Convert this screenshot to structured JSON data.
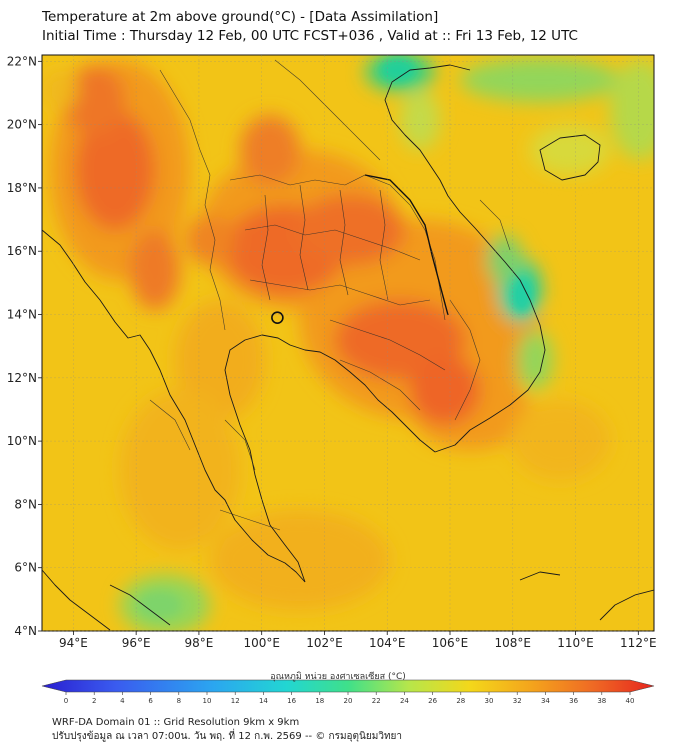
{
  "header": {
    "title_line1": "Temperature at 2m above ground(°C) - [Data Assimilation]",
    "title_line2": "Initial Time : Thursday 12 Feb, 00 UTC FCST+036 , Valid at :: Fri 13 Feb, 12 UTC"
  },
  "map": {
    "lon_range": [
      93,
      112.5
    ],
    "lat_range": [
      4,
      22.2
    ],
    "lon_ticks": [
      "94°E",
      "96°E",
      "98°E",
      "100°E",
      "102°E",
      "104°E",
      "106°E",
      "108°E",
      "110°E",
      "112°E"
    ],
    "lat_ticks": [
      "4°N",
      "6°N",
      "8°N",
      "10°N",
      "12°N",
      "14°N",
      "16°N",
      "18°N",
      "20°N",
      "22°N"
    ],
    "marker": {
      "lon": 100.5,
      "lat": 13.9
    }
  },
  "colorbar": {
    "label": "อุณหภูมิ หน่วย องศาเซลเซียส (°C)",
    "ticks": [
      "0",
      "2",
      "4",
      "6",
      "8",
      "10",
      "12",
      "14",
      "16",
      "18",
      "20",
      "22",
      "24",
      "26",
      "28",
      "30",
      "32",
      "34",
      "36",
      "38",
      "40"
    ]
  },
  "footer": {
    "line1": "WRF-DA Domain 01 :: Grid Resolution 9km x 9km",
    "line2": "ปรับปรุงข้อมูล ณ เวลา 07:00น. วัน พฤ. ที่ 12 ก.พ. 2569 -- © กรมอุตุนิยมวิทยา"
  },
  "colors": {
    "base_yellow": "#f2c417",
    "warm_orange": "#f29a1c",
    "hot_red_orange": "#ee6a25",
    "cool_green": "#7bd06a",
    "cool_teal": "#2bd19a"
  }
}
